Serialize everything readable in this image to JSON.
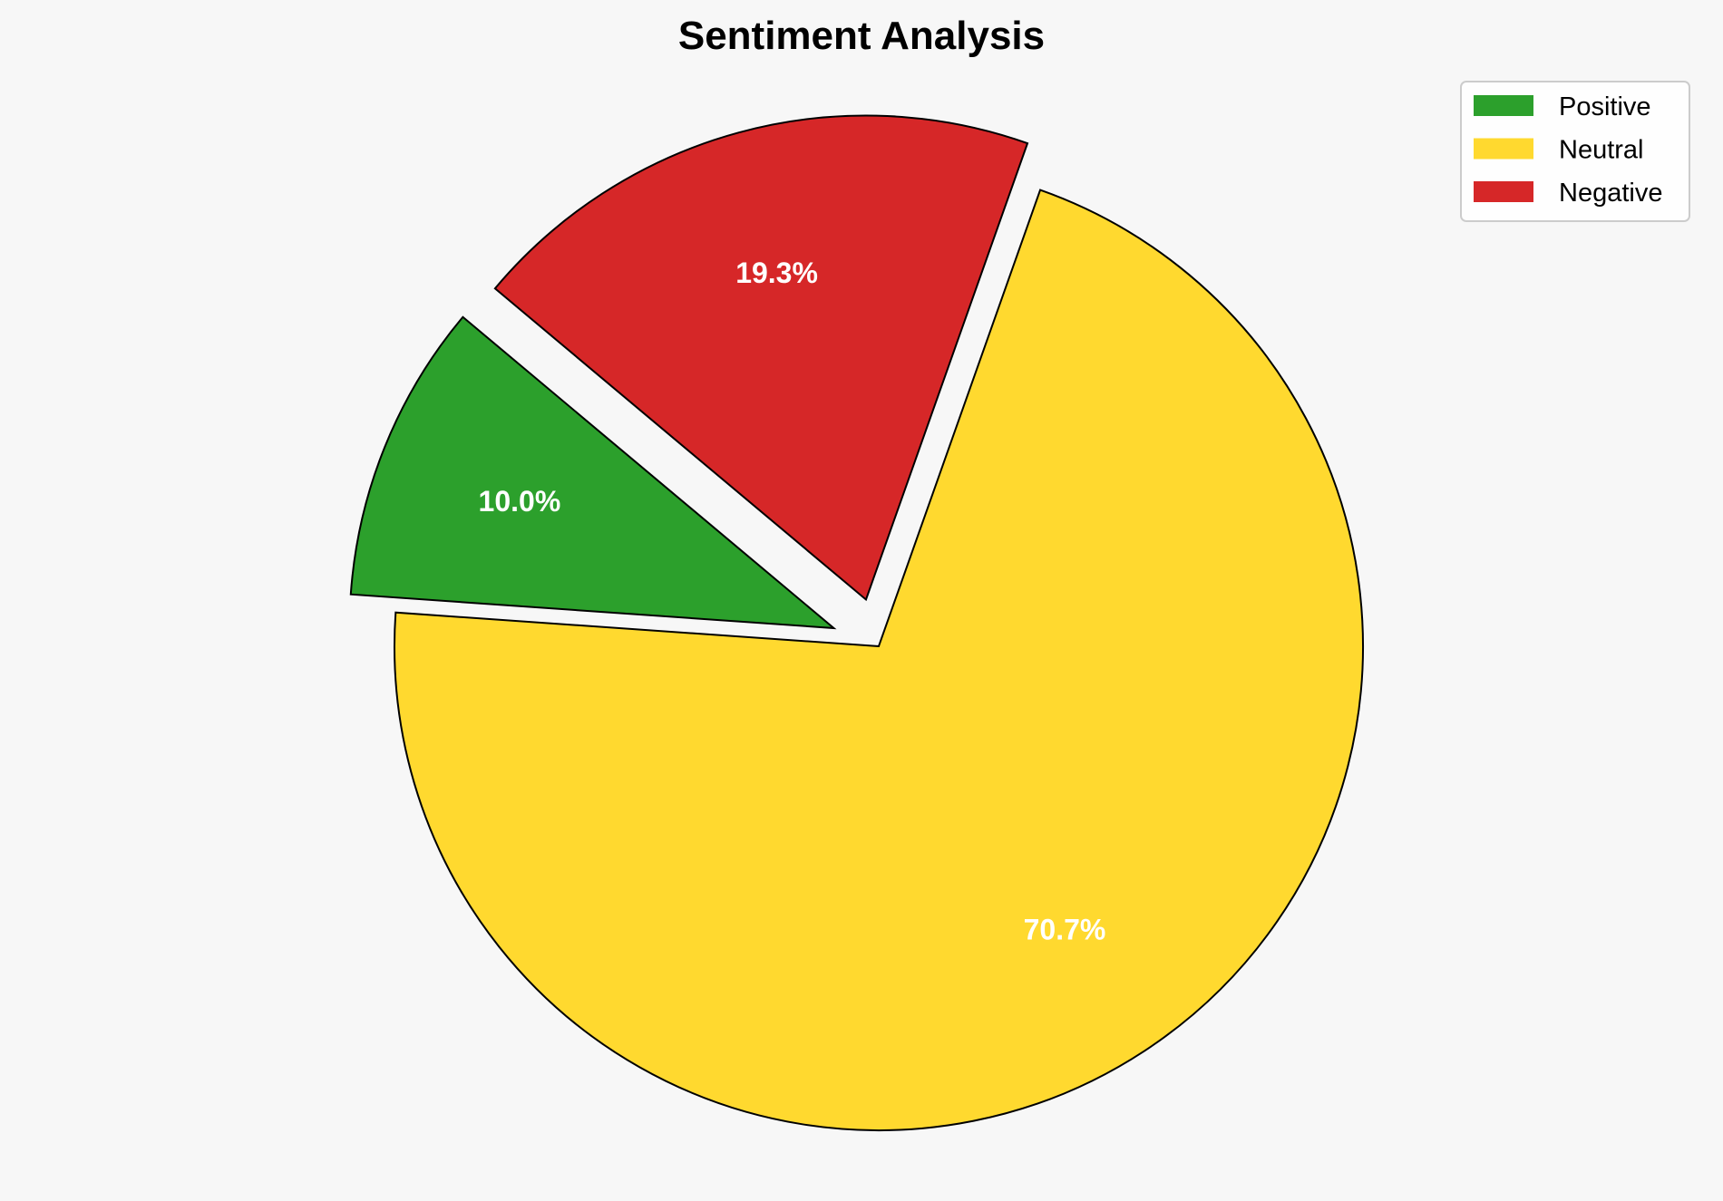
{
  "chart_data": {
    "type": "pie",
    "title": "Sentiment Analysis",
    "categories": [
      "Positive",
      "Neutral",
      "Negative"
    ],
    "values": [
      10.0,
      70.7,
      19.3
    ],
    "labels": [
      "10.0%",
      "70.7%",
      "19.3%"
    ],
    "colors": [
      "#2ca02c",
      "#ffd92f",
      "#d62728"
    ],
    "explode": [
      0.1,
      0,
      0.1
    ],
    "start_angle": 140,
    "legend_position": "top-right"
  }
}
